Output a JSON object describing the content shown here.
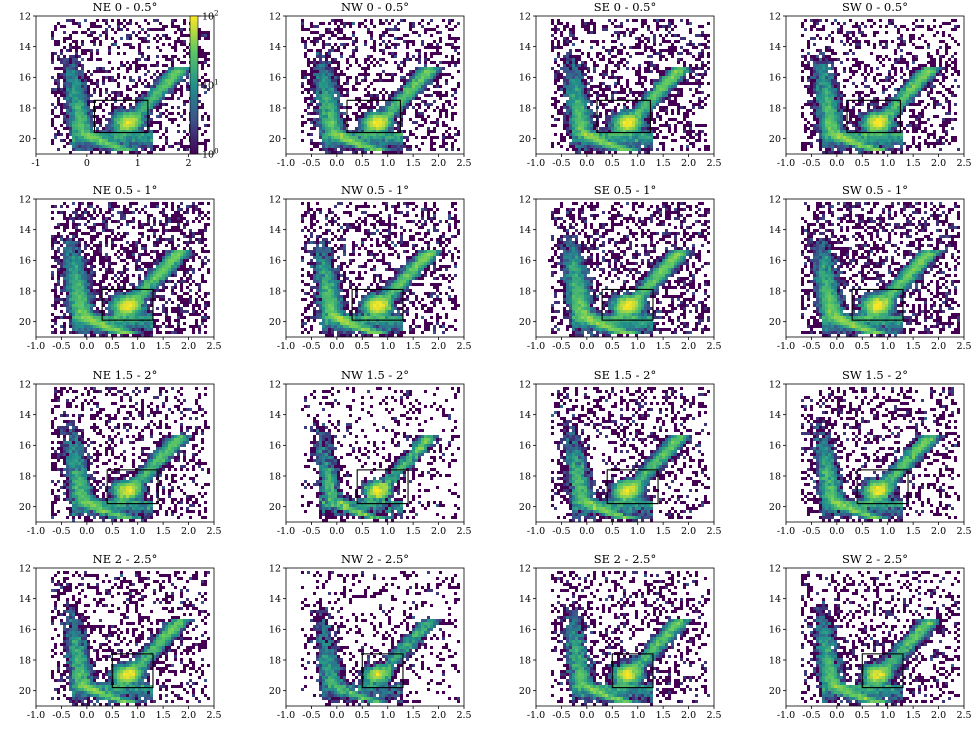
{
  "figure": {
    "colormap": "viridis",
    "colorbar": {
      "scale": "log",
      "range": [
        1,
        100
      ],
      "tick_labels": [
        {
          "base": "10",
          "exp": "2",
          "value": 100
        },
        {
          "base": "10",
          "exp": "1",
          "value": 10
        },
        {
          "base": "10",
          "exp": "0",
          "value": 1
        }
      ]
    },
    "colors": {
      "low": "#440154",
      "mid": "#21918c",
      "high": "#fde725",
      "box": "#000000"
    }
  },
  "chart_data": [
    {
      "type": "heatmap",
      "title": "NE 0 - 0.5°",
      "density": "high",
      "xlim": [
        -1,
        2.5
      ],
      "ylim": [
        21,
        12
      ],
      "xticks": [
        "-1",
        "0",
        "1",
        "2"
      ],
      "yticks": [
        "12",
        "14",
        "16",
        "18",
        "20"
      ],
      "box": {
        "x": [
          0.15,
          1.2
        ],
        "y": [
          17.5,
          19.6
        ]
      }
    },
    {
      "type": "heatmap",
      "title": "NW 0 - 0.5°",
      "density": "high",
      "xlim": [
        -1,
        2.5
      ],
      "ylim": [
        21,
        12
      ],
      "xticks": [
        "-1.0",
        "-0.5",
        "0.0",
        "0.5",
        "1.0",
        "1.5",
        "2.0",
        "2.5"
      ],
      "yticks": [
        "12",
        "14",
        "16",
        "18",
        "20"
      ],
      "box": {
        "x": [
          0.2,
          1.25
        ],
        "y": [
          17.5,
          19.6
        ]
      }
    },
    {
      "type": "heatmap",
      "title": "SE 0 - 0.5°",
      "density": "high",
      "xlim": [
        -1,
        2.5
      ],
      "ylim": [
        21,
        12
      ],
      "xticks": [
        "-1.0",
        "-0.5",
        "0.0",
        "0.5",
        "1.0",
        "1.5",
        "2.0",
        "2.5"
      ],
      "yticks": [
        "12",
        "14",
        "16",
        "18",
        "20"
      ],
      "box": {
        "x": [
          0.2,
          1.25
        ],
        "y": [
          17.5,
          19.6
        ]
      }
    },
    {
      "type": "heatmap",
      "title": "SW 0 - 0.5°",
      "density": "high",
      "xlim": [
        -1,
        2.5
      ],
      "ylim": [
        21,
        12
      ],
      "xticks": [
        "-1.0",
        "-0.5",
        "0.0",
        "0.5",
        "1.0",
        "1.5",
        "2.0",
        "2.5"
      ],
      "yticks": [
        "12",
        "14",
        "16",
        "18",
        "20"
      ],
      "box": {
        "x": [
          0.2,
          1.25
        ],
        "y": [
          17.5,
          19.6
        ]
      }
    },
    {
      "type": "heatmap",
      "title": "NE 0.5 - 1°",
      "density": "very-high",
      "xlim": [
        -1,
        2.5
      ],
      "ylim": [
        21,
        12
      ],
      "xticks": [
        "-1.0",
        "-0.5",
        "0.0",
        "0.5",
        "1.0",
        "1.5",
        "2.0",
        "2.5"
      ],
      "yticks": [
        "12",
        "14",
        "16",
        "18",
        "20"
      ],
      "box": {
        "x": [
          0.3,
          1.3
        ],
        "y": [
          17.9,
          19.9
        ]
      }
    },
    {
      "type": "heatmap",
      "title": "NW 0.5 - 1°",
      "density": "high",
      "xlim": [
        -1,
        2.5
      ],
      "ylim": [
        21,
        12
      ],
      "xticks": [
        "-1.0",
        "-0.5",
        "0.0",
        "0.5",
        "1.0",
        "1.5",
        "2.0",
        "2.5"
      ],
      "yticks": [
        "12",
        "14",
        "16",
        "18",
        "20"
      ],
      "box": {
        "x": [
          0.3,
          1.3
        ],
        "y": [
          17.9,
          19.9
        ]
      }
    },
    {
      "type": "heatmap",
      "title": "SE 0.5 - 1°",
      "density": "very-high",
      "xlim": [
        -1,
        2.5
      ],
      "ylim": [
        21,
        12
      ],
      "xticks": [
        "-1.0",
        "-0.5",
        "0.0",
        "0.5",
        "1.0",
        "1.5",
        "2.0",
        "2.5"
      ],
      "yticks": [
        "12",
        "14",
        "16",
        "18",
        "20"
      ],
      "box": {
        "x": [
          0.3,
          1.3
        ],
        "y": [
          17.9,
          19.9
        ]
      }
    },
    {
      "type": "heatmap",
      "title": "SW 0.5 - 1°",
      "density": "very-high",
      "xlim": [
        -1,
        2.5
      ],
      "ylim": [
        21,
        12
      ],
      "xticks": [
        "-1.0",
        "-0.5",
        "0.0",
        "0.5",
        "1.0",
        "1.5",
        "2.0",
        "2.5"
      ],
      "yticks": [
        "12",
        "14",
        "16",
        "18",
        "20"
      ],
      "box": {
        "x": [
          0.3,
          1.3
        ],
        "y": [
          17.9,
          19.9
        ]
      }
    },
    {
      "type": "heatmap",
      "title": "NE 1.5 - 2°",
      "density": "medium",
      "xlim": [
        -1,
        2.5
      ],
      "ylim": [
        21,
        12
      ],
      "xticks": [
        "-1.0",
        "-0.5",
        "0.0",
        "0.5",
        "1.0",
        "1.5",
        "2.0",
        "2.5"
      ],
      "yticks": [
        "12",
        "14",
        "16",
        "18",
        "20"
      ],
      "box": {
        "x": [
          0.4,
          1.4
        ],
        "y": [
          17.6,
          19.8
        ]
      }
    },
    {
      "type": "heatmap",
      "title": "NW 1.5 - 2°",
      "density": "low",
      "xlim": [
        -1,
        2.5
      ],
      "ylim": [
        21,
        12
      ],
      "xticks": [
        "-1.0",
        "-0.5",
        "0.0",
        "0.5",
        "1.0",
        "1.5",
        "2.0",
        "2.5"
      ],
      "yticks": [
        "12",
        "14",
        "16",
        "18",
        "20"
      ],
      "box": {
        "x": [
          0.4,
          1.4
        ],
        "y": [
          17.6,
          19.8
        ]
      }
    },
    {
      "type": "heatmap",
      "title": "SE 1.5 - 2°",
      "density": "medium",
      "xlim": [
        -1,
        2.5
      ],
      "ylim": [
        21,
        12
      ],
      "xticks": [
        "-1.0",
        "-0.5",
        "0.0",
        "0.5",
        "1.0",
        "1.5",
        "2.0",
        "2.5"
      ],
      "yticks": [
        "12",
        "14",
        "16",
        "18",
        "20"
      ],
      "box": {
        "x": [
          0.4,
          1.4
        ],
        "y": [
          17.6,
          19.8
        ]
      }
    },
    {
      "type": "heatmap",
      "title": "SW 1.5 - 2°",
      "density": "medium",
      "xlim": [
        -1,
        2.5
      ],
      "ylim": [
        21,
        12
      ],
      "xticks": [
        "-1.0",
        "-0.5",
        "0.0",
        "0.5",
        "1.0",
        "1.5",
        "2.0",
        "2.5"
      ],
      "yticks": [
        "12",
        "14",
        "16",
        "18",
        "20"
      ],
      "box": {
        "x": [
          0.4,
          1.4
        ],
        "y": [
          17.6,
          19.8
        ]
      }
    },
    {
      "type": "heatmap",
      "title": "NE 2 - 2.5°",
      "density": "medium",
      "xlim": [
        -1,
        2.5
      ],
      "ylim": [
        21,
        12
      ],
      "xticks": [
        "-1.0",
        "-0.5",
        "0.0",
        "0.5",
        "1.0",
        "1.5",
        "2.0",
        "2.5"
      ],
      "yticks": [
        "12",
        "14",
        "16",
        "18",
        "20"
      ],
      "box": {
        "x": [
          0.5,
          1.3
        ],
        "y": [
          17.6,
          19.8
        ]
      }
    },
    {
      "type": "heatmap",
      "title": "NW 2 - 2.5°",
      "density": "low",
      "xlim": [
        -1,
        2.5
      ],
      "ylim": [
        21,
        12
      ],
      "xticks": [
        "-1.0",
        "-0.5",
        "0.0",
        "0.5",
        "1.0",
        "1.5",
        "2.0",
        "2.5"
      ],
      "yticks": [
        "12",
        "14",
        "16",
        "18",
        "20"
      ],
      "box": {
        "x": [
          0.5,
          1.3
        ],
        "y": [
          17.6,
          19.8
        ]
      }
    },
    {
      "type": "heatmap",
      "title": "SE 2 - 2.5°",
      "density": "medium",
      "xlim": [
        -1,
        2.5
      ],
      "ylim": [
        21,
        12
      ],
      "xticks": [
        "-1.0",
        "-0.5",
        "0.0",
        "0.5",
        "1.0",
        "1.5",
        "2.0",
        "2.5"
      ],
      "yticks": [
        "12",
        "14",
        "16",
        "18",
        "20"
      ],
      "box": {
        "x": [
          0.5,
          1.3
        ],
        "y": [
          17.6,
          19.8
        ]
      }
    },
    {
      "type": "heatmap",
      "title": "SW 2 - 2.5°",
      "density": "medium",
      "xlim": [
        -1,
        2.5
      ],
      "ylim": [
        21,
        12
      ],
      "xticks": [
        "-1.0",
        "-0.5",
        "0.0",
        "0.5",
        "1.0",
        "1.5",
        "2.0",
        "2.5"
      ],
      "yticks": [
        "12",
        "14",
        "16",
        "18",
        "20"
      ],
      "box": {
        "x": [
          0.5,
          1.3
        ],
        "y": [
          17.6,
          19.8
        ]
      }
    }
  ]
}
